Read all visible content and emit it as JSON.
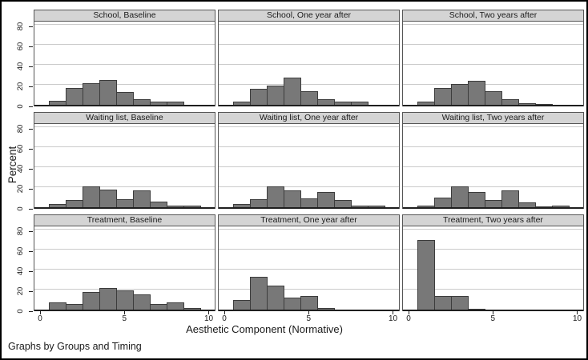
{
  "figure": {
    "ylabel": "Percent",
    "xlabel": "Aesthetic Component (Normative)",
    "note": "Graphs by Groups and Timing",
    "y_ticks": [
      0,
      20,
      40,
      60,
      80
    ],
    "x_ticks": [
      0,
      5,
      10
    ],
    "groups": [
      "School",
      "Waiting list",
      "Treatment"
    ],
    "timings": [
      "Baseline",
      "One year after",
      "Two years after"
    ],
    "colors": {
      "bar_fill": "#787878",
      "bar_border": "#3c3c3c",
      "title_bg": "#d4d4d4",
      "gridline": "#cbcbcb",
      "panel_border": "#565656",
      "axis": "#1f1f1f"
    }
  },
  "chart_data": [
    {
      "type": "bar",
      "title": "School, Baseline",
      "group": "School",
      "timing": "Baseline",
      "x": [
        1,
        2,
        3,
        4,
        5,
        6,
        7,
        8,
        9
      ],
      "values": [
        4,
        17,
        22,
        25,
        13,
        6,
        3,
        3,
        0
      ],
      "bin_width": 1,
      "xlim": [
        0,
        10
      ],
      "ylim": [
        0,
        80
      ],
      "xlabel": "Aesthetic Component (Normative)",
      "ylabel": "Percent",
      "grid": true
    },
    {
      "type": "bar",
      "title": "School, One year after",
      "group": "School",
      "timing": "One year after",
      "x": [
        1,
        2,
        3,
        4,
        5,
        6,
        7,
        8,
        9
      ],
      "values": [
        3,
        16,
        19,
        27,
        14,
        6,
        3,
        3,
        0
      ],
      "bin_width": 1,
      "xlim": [
        0,
        10
      ],
      "ylim": [
        0,
        80
      ],
      "xlabel": "Aesthetic Component (Normative)",
      "ylabel": "Percent",
      "grid": true
    },
    {
      "type": "bar",
      "title": "School, Two years after",
      "group": "School",
      "timing": "Two years after",
      "x": [
        1,
        2,
        3,
        4,
        5,
        6,
        7,
        8,
        9
      ],
      "values": [
        3,
        17,
        21,
        24,
        14,
        6,
        2,
        1,
        0
      ],
      "bin_width": 1,
      "xlim": [
        0,
        10
      ],
      "ylim": [
        0,
        80
      ],
      "xlabel": "Aesthetic Component (Normative)",
      "ylabel": "Percent",
      "grid": true
    },
    {
      "type": "bar",
      "title": "Waiting list, Baseline",
      "group": "Waiting list",
      "timing": "Baseline",
      "x": [
        1,
        2,
        3,
        4,
        5,
        6,
        7,
        8,
        9
      ],
      "values": [
        3,
        7,
        21,
        18,
        8,
        17,
        6,
        2,
        2
      ],
      "bin_width": 1,
      "xlim": [
        0,
        10
      ],
      "ylim": [
        0,
        80
      ],
      "xlabel": "Aesthetic Component (Normative)",
      "ylabel": "Percent",
      "grid": true
    },
    {
      "type": "bar",
      "title": "Waiting list, One year after",
      "group": "Waiting list",
      "timing": "One year after",
      "x": [
        1,
        2,
        3,
        4,
        5,
        6,
        7,
        8,
        9
      ],
      "values": [
        3,
        8,
        21,
        17,
        9,
        15,
        7,
        2,
        2
      ],
      "bin_width": 1,
      "xlim": [
        0,
        10
      ],
      "ylim": [
        0,
        80
      ],
      "xlabel": "Aesthetic Component (Normative)",
      "ylabel": "Percent",
      "grid": true
    },
    {
      "type": "bar",
      "title": "Waiting list, Two years after",
      "group": "Waiting list",
      "timing": "Two years after",
      "x": [
        1,
        2,
        3,
        4,
        5,
        6,
        7,
        8,
        9
      ],
      "values": [
        2,
        10,
        21,
        15,
        7,
        17,
        5,
        1,
        2
      ],
      "bin_width": 1,
      "xlim": [
        0,
        10
      ],
      "ylim": [
        0,
        80
      ],
      "xlabel": "Aesthetic Component (Normative)",
      "ylabel": "Percent",
      "grid": true
    },
    {
      "type": "bar",
      "title": "Treatment, Baseline",
      "group": "Treatment",
      "timing": "Baseline",
      "x": [
        1,
        2,
        3,
        4,
        5,
        6,
        7,
        8,
        9
      ],
      "values": [
        7,
        6,
        18,
        22,
        19,
        15,
        6,
        7,
        2
      ],
      "bin_width": 1,
      "xlim": [
        0,
        10
      ],
      "ylim": [
        0,
        80
      ],
      "xlabel": "Aesthetic Component (Normative)",
      "ylabel": "Percent",
      "grid": true
    },
    {
      "type": "bar",
      "title": "Treatment, One year after",
      "group": "Treatment",
      "timing": "One year after",
      "x": [
        1,
        2,
        3,
        4,
        5,
        6,
        7,
        8,
        9
      ],
      "values": [
        10,
        33,
        24,
        12,
        14,
        2,
        0,
        0,
        0
      ],
      "bin_width": 1,
      "xlim": [
        0,
        10
      ],
      "ylim": [
        0,
        80
      ],
      "xlabel": "Aesthetic Component (Normative)",
      "ylabel": "Percent",
      "grid": true
    },
    {
      "type": "bar",
      "title": "Treatment, Two years after",
      "group": "Treatment",
      "timing": "Two years after",
      "x": [
        1,
        2,
        3,
        4,
        5,
        6,
        7,
        8,
        9
      ],
      "values": [
        70,
        14,
        14,
        1,
        0,
        0,
        0,
        0,
        0
      ],
      "bin_width": 1,
      "xlim": [
        0,
        10
      ],
      "ylim": [
        0,
        80
      ],
      "xlabel": "Aesthetic Component (Normative)",
      "ylabel": "Percent",
      "grid": true
    }
  ]
}
